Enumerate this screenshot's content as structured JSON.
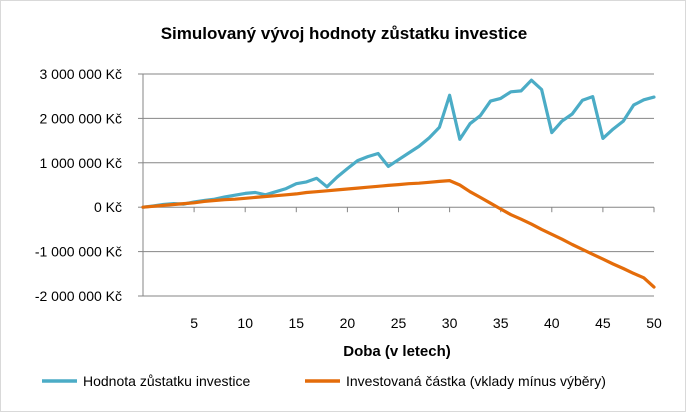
{
  "chart_data": {
    "type": "line",
    "title": "Simulovaný  vývoj  hodnoty zůstatku investice",
    "xlabel": "Doba (v letech)",
    "ylabel": "",
    "x": [
      0,
      1,
      2,
      3,
      4,
      5,
      6,
      7,
      8,
      9,
      10,
      11,
      12,
      13,
      14,
      15,
      16,
      17,
      18,
      19,
      20,
      21,
      22,
      23,
      24,
      25,
      26,
      27,
      28,
      29,
      30,
      31,
      32,
      33,
      34,
      35,
      36,
      37,
      38,
      39,
      40,
      41,
      42,
      43,
      44,
      45,
      46,
      47,
      48,
      49,
      50
    ],
    "xlim": [
      0,
      50
    ],
    "ylim": [
      -2000000,
      3000000
    ],
    "x_ticks": [
      {
        "value": 5,
        "label": "5"
      },
      {
        "value": 10,
        "label": "10"
      },
      {
        "value": 15,
        "label": "15"
      },
      {
        "value": 20,
        "label": "20"
      },
      {
        "value": 25,
        "label": "25"
      },
      {
        "value": 30,
        "label": "30"
      },
      {
        "value": 35,
        "label": "35"
      },
      {
        "value": 40,
        "label": "40"
      },
      {
        "value": 45,
        "label": "45"
      },
      {
        "value": 50,
        "label": "50"
      }
    ],
    "y_ticks": [
      {
        "value": 3000000,
        "label": "3 000 000 Kč"
      },
      {
        "value": 2000000,
        "label": "2 000 000 Kč"
      },
      {
        "value": 1000000,
        "label": "1 000 000 Kč"
      },
      {
        "value": 0,
        "label": "0 Kč"
      },
      {
        "value": -1000000,
        "label": "-1 000 000 Kč"
      },
      {
        "value": -2000000,
        "label": "-2 000 000 Kč"
      }
    ],
    "grid": true,
    "legend_position": "bottom",
    "series": [
      {
        "name": "Hodnota zůstatku investice",
        "color": "#4bacc6",
        "values": [
          0,
          30000,
          60000,
          80000,
          70000,
          120000,
          150000,
          180000,
          230000,
          270000,
          310000,
          330000,
          280000,
          350000,
          420000,
          530000,
          570000,
          650000,
          460000,
          680000,
          870000,
          1050000,
          1140000,
          1210000,
          920000,
          1070000,
          1220000,
          1370000,
          1560000,
          1800000,
          2520000,
          1530000,
          1880000,
          2060000,
          2390000,
          2450000,
          2600000,
          2620000,
          2860000,
          2650000,
          1680000,
          1940000,
          2100000,
          2410000,
          2490000,
          1550000,
          1760000,
          1940000,
          2300000,
          2420000,
          2480000
        ]
      },
      {
        "name": "Investovaná částka (vklady mínus výběry)",
        "color": "#e46c0a",
        "values": [
          0,
          20000,
          40000,
          60000,
          80000,
          100000,
          130000,
          150000,
          170000,
          180000,
          200000,
          220000,
          240000,
          260000,
          280000,
          300000,
          330000,
          350000,
          370000,
          390000,
          410000,
          430000,
          450000,
          470000,
          490000,
          510000,
          530000,
          540000,
          560000,
          580000,
          600000,
          500000,
          350000,
          220000,
          90000,
          -40000,
          -170000,
          -270000,
          -380000,
          -500000,
          -610000,
          -720000,
          -840000,
          -950000,
          -1060000,
          -1170000,
          -1280000,
          -1380000,
          -1490000,
          -1590000,
          -1800000
        ]
      }
    ]
  }
}
